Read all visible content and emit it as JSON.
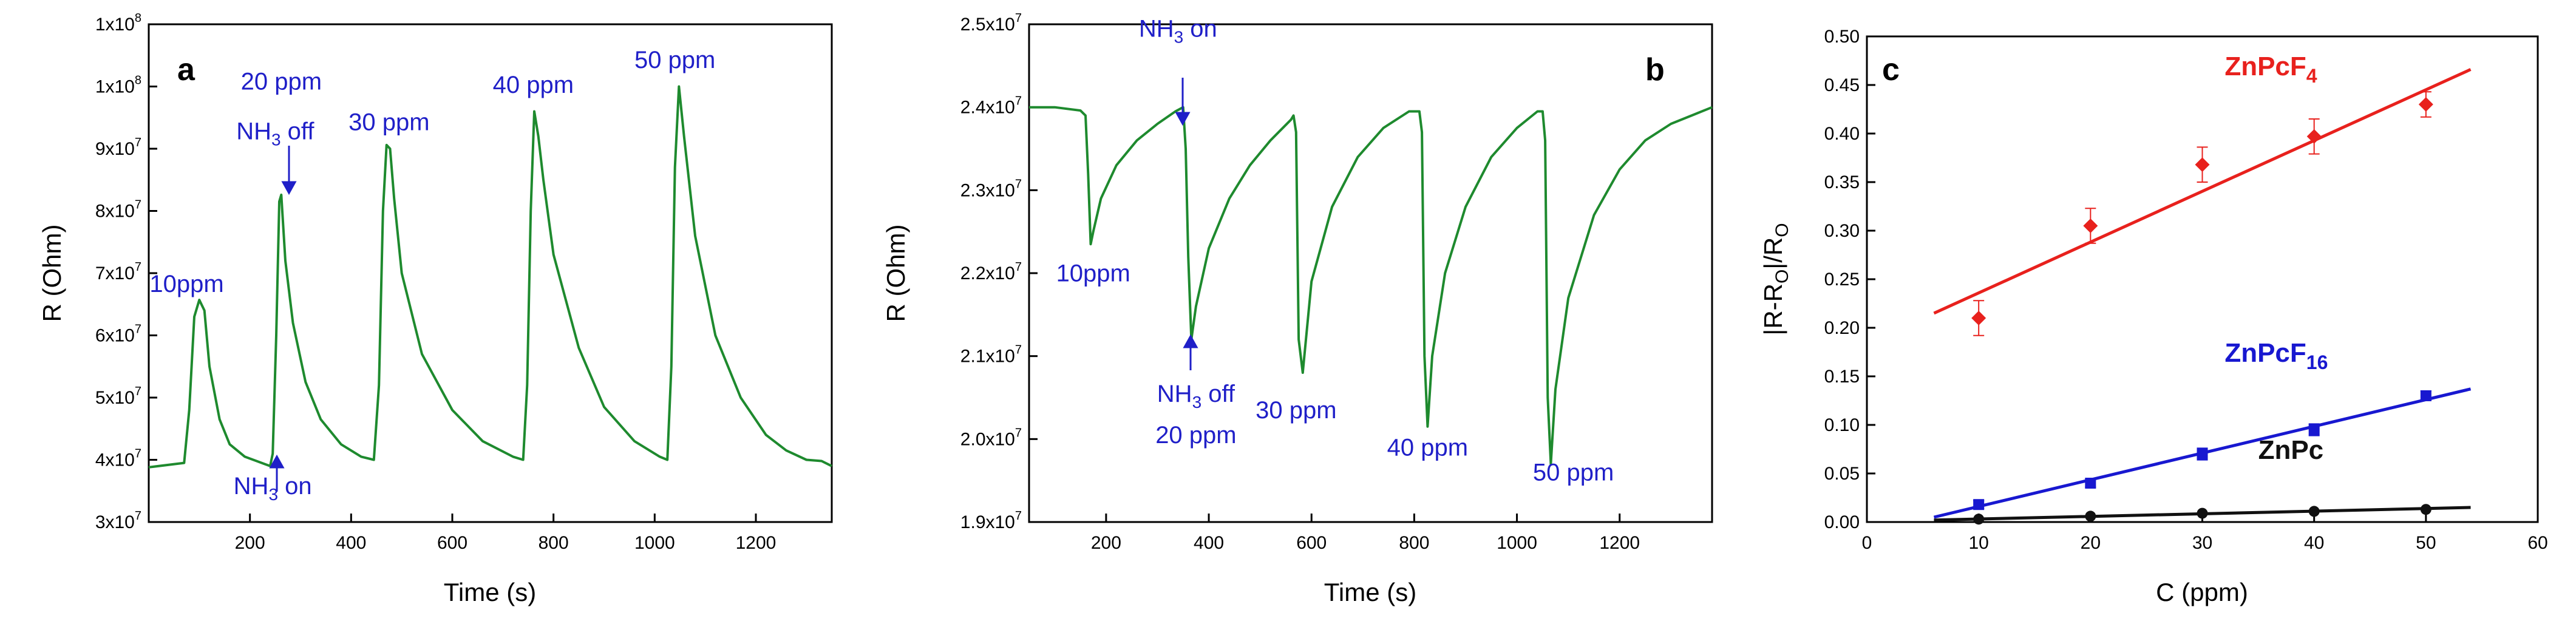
{
  "chart_data": [
    {
      "panel": "a",
      "type": "line",
      "xlabel": "Time (s)",
      "ylabel": "R (Ohm)",
      "xlim": [
        0,
        1350
      ],
      "ylim": [
        30000000,
        110000000
      ],
      "xticks": [
        200,
        400,
        600,
        800,
        1000,
        1200
      ],
      "xtick_labels": [
        "200",
        "400",
        "600",
        "800",
        "1000",
        "1200"
      ],
      "yticks": [
        30000000,
        40000000,
        50000000,
        60000000,
        70000000,
        80000000,
        90000000,
        100000000,
        110000000
      ],
      "ytick_labels": [
        "3x10^7",
        "4x10^7",
        "5x10^7",
        "6x10^7",
        "7x10^7",
        "8x10^7",
        "9x10^7",
        "1x10^8",
        "1x10^8"
      ],
      "line_color": "#1e8a2e",
      "series": [
        {
          "name": "resistance",
          "x": [
            0,
            70,
            80,
            90,
            100,
            110,
            120,
            140,
            160,
            190,
            230,
            240,
            245,
            252,
            258,
            262,
            270,
            285,
            310,
            340,
            380,
            420,
            445,
            455,
            463,
            470,
            477,
            485,
            500,
            540,
            600,
            660,
            720,
            740,
            748,
            755,
            762,
            770,
            780,
            800,
            850,
            900,
            960,
            1010,
            1025,
            1033,
            1040,
            1048,
            1058,
            1080,
            1120,
            1170,
            1220,
            1260,
            1300,
            1330,
            1350
          ],
          "y": [
            38800000,
            39500000,
            48000000,
            63000000,
            65700000,
            64000000,
            55000000,
            46500000,
            42500000,
            40500000,
            39300000,
            39000000,
            41000000,
            60000000,
            81500000,
            82600000,
            72000000,
            62000000,
            52500000,
            46500000,
            42500000,
            40500000,
            40000000,
            52000000,
            80000000,
            90600000,
            90000000,
            82000000,
            70000000,
            57000000,
            48000000,
            43000000,
            40500000,
            40000000,
            52000000,
            80000000,
            96000000,
            92000000,
            85000000,
            73000000,
            58000000,
            48500000,
            43000000,
            40500000,
            40000000,
            55000000,
            87000000,
            100000000,
            92000000,
            76000000,
            60000000,
            50000000,
            44000000,
            41500000,
            40000000,
            39800000,
            39000000
          ]
        }
      ],
      "annotations": [
        {
          "text": "10ppm",
          "x": 75,
          "y": 67000000
        },
        {
          "text": "20 ppm",
          "x": 262,
          "y": 99500000
        },
        {
          "text": "NH3 off",
          "x": 250,
          "y": 91500000
        },
        {
          "text": "30 ppm",
          "x": 475,
          "y": 93000000
        },
        {
          "text": "40 ppm",
          "x": 760,
          "y": 99000000
        },
        {
          "text": "50 ppm",
          "x": 1040,
          "y": 103000000
        },
        {
          "text": "NH3 on",
          "x": 245,
          "y": 34500000
        }
      ]
    },
    {
      "panel": "b",
      "type": "line",
      "xlabel": "Time (s)",
      "ylabel": "R (Ohm)",
      "xlim": [
        50,
        1380
      ],
      "ylim": [
        19000000,
        25000000
      ],
      "xticks": [
        200,
        400,
        600,
        800,
        1000,
        1200
      ],
      "xtick_labels": [
        "200",
        "400",
        "600",
        "800",
        "1000",
        "1200"
      ],
      "yticks": [
        19000000,
        20000000,
        21000000,
        22000000,
        23000000,
        24000000,
        25000000
      ],
      "ytick_labels": [
        "1.9x10^7",
        "2.0x10^7",
        "2.1x10^7",
        "2.2x10^7",
        "2.3x10^7",
        "2.4x10^7",
        "2.5x10^7"
      ],
      "line_color": "#1e8a2e",
      "series": [
        {
          "name": "resistance",
          "x": [
            50,
            100,
            150,
            160,
            165,
            170,
            175,
            190,
            220,
            260,
            300,
            335,
            350,
            355,
            360,
            366,
            375,
            400,
            440,
            480,
            520,
            560,
            565,
            570,
            575,
            583,
            600,
            640,
            690,
            740,
            790,
            810,
            815,
            820,
            826,
            835,
            860,
            900,
            950,
            1000,
            1040,
            1050,
            1055,
            1060,
            1066,
            1075,
            1100,
            1150,
            1200,
            1250,
            1300,
            1380
          ],
          "y": [
            24000000,
            24000000,
            23960000,
            23900000,
            23200000,
            22350000,
            22500000,
            22900000,
            23300000,
            23600000,
            23800000,
            23950000,
            24000000,
            23500000,
            22200000,
            21200000,
            21600000,
            22300000,
            22900000,
            23300000,
            23600000,
            23850000,
            23900000,
            23700000,
            21200000,
            20800000,
            21900000,
            22800000,
            23400000,
            23750000,
            23950000,
            23950000,
            23700000,
            21000000,
            20150000,
            21000000,
            22000000,
            22800000,
            23400000,
            23750000,
            23950000,
            23950000,
            23600000,
            20500000,
            19700000,
            20600000,
            21700000,
            22700000,
            23250000,
            23600000,
            23800000,
            24000000
          ]
        }
      ],
      "annotations": [
        {
          "text": "NH3 on",
          "x": 340,
          "y": 24850000
        },
        {
          "text": "10ppm",
          "x": 175,
          "y": 21900000
        },
        {
          "text": "NH3 off",
          "x": 375,
          "y": 20450000
        },
        {
          "text": "20 ppm",
          "x": 375,
          "y": 19950000
        },
        {
          "text": "30 ppm",
          "x": 570,
          "y": 20250000
        },
        {
          "text": "40 ppm",
          "x": 826,
          "y": 19800000
        },
        {
          "text": "50 ppm",
          "x": 1110,
          "y": 19500000
        }
      ]
    },
    {
      "panel": "c",
      "type": "scatter",
      "xlabel": "C (ppm)",
      "ylabel": "|R-RO|/RO",
      "xlim": [
        0,
        60
      ],
      "ylim": [
        0,
        0.5
      ],
      "xticks": [
        0,
        10,
        20,
        30,
        40,
        50,
        60
      ],
      "xtick_labels": [
        "0",
        "10",
        "20",
        "30",
        "40",
        "50",
        "60"
      ],
      "yticks": [
        0,
        0.05,
        0.1,
        0.15,
        0.2,
        0.25,
        0.3,
        0.35,
        0.4,
        0.45,
        0.5
      ],
      "ytick_labels": [
        "0.00",
        "0.05",
        "0.10",
        "0.15",
        "0.20",
        "0.25",
        "0.30",
        "0.35",
        "0.40",
        "0.45",
        "0.50"
      ],
      "series": [
        {
          "name": "ZnPcF4",
          "color": "#e8211d",
          "marker": "diamond",
          "x": [
            10,
            20,
            30,
            40,
            50
          ],
          "y": [
            0.21,
            0.305,
            0.368,
            0.397,
            0.43
          ],
          "err": [
            0.018,
            0.018,
            0.018,
            0.018,
            0.013
          ],
          "fit_x": [
            6,
            54
          ],
          "fit_y": [
            0.215,
            0.466
          ]
        },
        {
          "name": "ZnPcF16",
          "color": "#1818d0",
          "marker": "square",
          "x": [
            10,
            20,
            30,
            40,
            50
          ],
          "y": [
            0.018,
            0.04,
            0.07,
            0.095,
            0.13
          ],
          "err": [
            0.004,
            0.004,
            0.006,
            0.006,
            0.005
          ],
          "fit_x": [
            6,
            54
          ],
          "fit_y": [
            0.005,
            0.137
          ]
        },
        {
          "name": "ZnPc",
          "color": "#111111",
          "marker": "circle",
          "x": [
            10,
            20,
            30,
            40,
            50
          ],
          "y": [
            0.003,
            0.006,
            0.009,
            0.011,
            0.013
          ],
          "err": [
            0,
            0,
            0,
            0,
            0
          ],
          "fit_x": [
            6,
            54
          ],
          "fit_y": [
            0.002,
            0.015
          ]
        }
      ],
      "labels": [
        {
          "base": "ZnPcF",
          "sub": "4",
          "color": "#e8211d",
          "x": 32,
          "y": 0.46
        },
        {
          "base": "ZnPcF",
          "sub": "16",
          "color": "#1818d0",
          "x": 32,
          "y": 0.165
        },
        {
          "base": "ZnPc",
          "sub": "",
          "color": "#111111",
          "x": 35,
          "y": 0.065
        }
      ]
    }
  ]
}
